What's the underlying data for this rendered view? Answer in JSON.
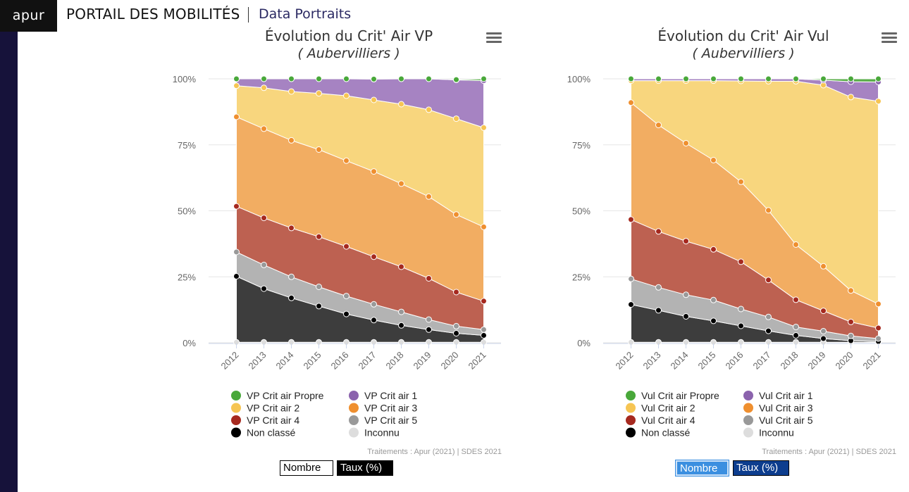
{
  "header": {
    "logo": "apur",
    "title": "PORTAIL DES MOBILITÉS",
    "subtitle": "Data Portraits"
  },
  "colors": {
    "propre": "#5aad4a",
    "crit1": "#a683c2",
    "crit2": "#f8d67e",
    "crit3": "#f2ad62",
    "crit4": "#bd6151",
    "crit5": "#b3b3b3",
    "nonclasse": "#3d3d3d",
    "inconnu": "#dddddd"
  },
  "chart_data": [
    {
      "type": "area",
      "stacked": "percent",
      "title": "Évolution du Crit' Air VP",
      "subtitle": "( Aubervilliers )",
      "x": [
        "2012",
        "2013",
        "2014",
        "2015",
        "2016",
        "2017",
        "2018",
        "2019",
        "2020",
        "2021"
      ],
      "ylim": [
        0,
        100
      ],
      "yticks": [
        "0%",
        "25%",
        "50%",
        "75%",
        "100%"
      ],
      "legend_placement": "bottom",
      "credits": "Traitements : Apur (2021) | SDES 2021",
      "series": [
        {
          "name": "Inconnu",
          "color": "#dddddd",
          "marker": "#dddddd",
          "values": [
            0.2,
            0.2,
            0.2,
            0.2,
            0.2,
            0.2,
            0.2,
            0.2,
            0.2,
            0.2
          ]
        },
        {
          "name": "Non classé",
          "color": "#3d3d3d",
          "marker": "#000000",
          "values": [
            25,
            20.3,
            16.8,
            13.7,
            10.7,
            8.4,
            6.4,
            4.8,
            3.4,
            2.6
          ]
        },
        {
          "name": "VP Crit air 5",
          "color": "#b3b3b3",
          "marker": "#999999",
          "values": [
            9.2,
            9,
            8,
            7.3,
            6.8,
            6,
            5.1,
            3.8,
            2.7,
            2.2
          ]
        },
        {
          "name": "VP Crit air 4",
          "color": "#bd6151",
          "marker": "#a6291f",
          "values": [
            17.3,
            17.8,
            18.5,
            19,
            18.8,
            18,
            17.1,
            15.6,
            12.9,
            10.8
          ]
        },
        {
          "name": "VP Crit air 3",
          "color": "#f2ad62",
          "marker": "#ef8f2f",
          "values": [
            33.9,
            33.8,
            33.2,
            33,
            32.5,
            32.3,
            31.5,
            31,
            29.4,
            28.1
          ]
        },
        {
          "name": "VP Crit air 2",
          "color": "#f8d67e",
          "marker": "#f6c553",
          "values": [
            11.8,
            15.5,
            18.5,
            21.3,
            24.6,
            27.1,
            30.1,
            32.9,
            36.3,
            37.6
          ]
        },
        {
          "name": "VP Crit air 1",
          "color": "#a683c2",
          "marker": "#8b63ad",
          "values": [
            2.6,
            3.4,
            4.8,
            5.5,
            6.4,
            7.9,
            9.6,
            11.7,
            14.7,
            17.8
          ]
        },
        {
          "name": "VP Crit air Propre",
          "color": "#5aad4a",
          "marker": "#49a83a",
          "values": [
            0,
            0,
            0,
            0,
            0,
            0,
            0,
            0,
            0.1,
            0.7
          ]
        }
      ]
    },
    {
      "type": "area",
      "stacked": "percent",
      "title": "Évolution du Crit' Air Vul",
      "subtitle": "( Aubervilliers )",
      "x": [
        "2012",
        "2013",
        "2014",
        "2015",
        "2016",
        "2017",
        "2018",
        "2019",
        "2020",
        "2021"
      ],
      "ylim": [
        0,
        100
      ],
      "yticks": [
        "0%",
        "25%",
        "50%",
        "75%",
        "100%"
      ],
      "legend_placement": "bottom",
      "credits": "Traitements : Apur (2021) | SDES 2021",
      "series": [
        {
          "name": "Inconnu",
          "color": "#dddddd",
          "marker": "#dddddd",
          "values": [
            0.2,
            0.2,
            0.2,
            0.2,
            0.2,
            0.2,
            0.2,
            0.2,
            0.2,
            0.2
          ]
        },
        {
          "name": "Non classé",
          "color": "#3d3d3d",
          "marker": "#000000",
          "values": [
            14.3,
            12.1,
            9.8,
            8.1,
            6.2,
            4.3,
            2.6,
            1.4,
            0.6,
            0.3
          ]
        },
        {
          "name": "Vul Crit air 5",
          "color": "#b3b3b3",
          "marker": "#999999",
          "values": [
            9.7,
            8.7,
            8.2,
            7.9,
            6.4,
            5.3,
            3.2,
            2.8,
            1.8,
            1.1
          ]
        },
        {
          "name": "Vul Crit air 4",
          "color": "#bd6151",
          "marker": "#a6291f",
          "values": [
            22.5,
            21.2,
            20.3,
            19.2,
            17.9,
            14,
            10.3,
            7.7,
            5.3,
            4
          ]
        },
        {
          "name": "Vul Crit air 3",
          "color": "#f2ad62",
          "marker": "#ef8f2f",
          "values": [
            44.3,
            40.3,
            37.1,
            33.8,
            30.3,
            26.4,
            20.9,
            16.9,
            11.9,
            9.1
          ]
        },
        {
          "name": "Vul Crit air 2",
          "color": "#f8d67e",
          "marker": "#f6c553",
          "values": [
            8.3,
            16.8,
            23.7,
            30.1,
            38.2,
            48.9,
            61.9,
            68.6,
            73.3,
            76.8
          ]
        },
        {
          "name": "Vul Crit air 1",
          "color": "#a683c2",
          "marker": "#8b63ad",
          "values": [
            0.7,
            0.7,
            0.7,
            0.7,
            0.8,
            0.9,
            0.9,
            1.9,
            5.8,
            7.3
          ]
        },
        {
          "name": "Vul Crit air Propre",
          "color": "#5aad4a",
          "marker": "#49a83a",
          "values": [
            0,
            0,
            0,
            0,
            0,
            0,
            0,
            0.5,
            1.1,
            1.2
          ]
        }
      ]
    }
  ],
  "buttons_left": {
    "count": "Nombre",
    "rate": "Taux (%)"
  },
  "buttons_right": {
    "count": "Nombre",
    "rate": "Taux (%)"
  }
}
